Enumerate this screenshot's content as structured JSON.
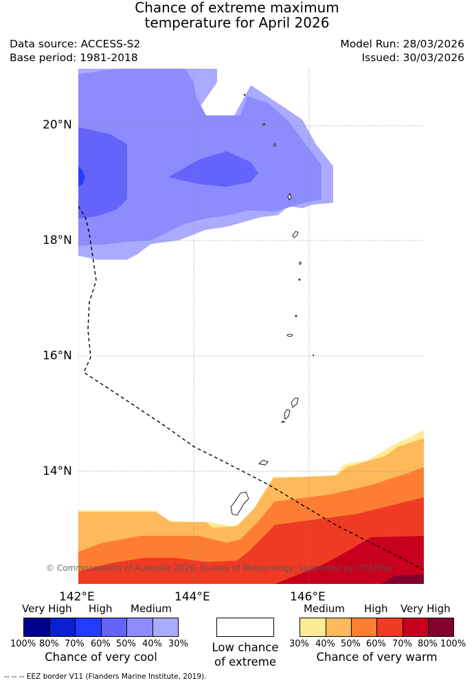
{
  "title": {
    "line1": "Chance of extreme maximum",
    "line2": "temperature for April 2026"
  },
  "meta": {
    "data_source": "Data source: ACCESS-S2",
    "base_period": "Base period: 1981-2018",
    "model_run": "Model Run: 28/03/2026",
    "issued": "Issued: 30/03/2026"
  },
  "map": {
    "lat_labels": [
      "20°N",
      "18°N",
      "16°N",
      "14°N"
    ],
    "lon_labels": [
      "142°E",
      "144°E",
      "146°E"
    ],
    "copyright": "© Commonwealth of Australia 2026, Bureau of Meteorology, supported by COSPPac"
  },
  "legend": {
    "cool": {
      "words": [
        "Very High",
        "High",
        "Medium"
      ],
      "percents": [
        "100%",
        "80%",
        "70%",
        "60%",
        "50%",
        "40%",
        "30%"
      ],
      "title": "Chance of very cool",
      "colors": [
        "#00008f",
        "#0a1ed2",
        "#233cff",
        "#6464fa",
        "#8c8cff",
        "#aaaaff"
      ]
    },
    "low": {
      "line1": "Low chance",
      "line2": "of extreme",
      "color": "#ffffff"
    },
    "warm": {
      "words": [
        "Medium",
        "High",
        "Very High"
      ],
      "percents": [
        "30%",
        "40%",
        "50%",
        "60%",
        "70%",
        "80%",
        "100%"
      ],
      "title": "Chance of very warm",
      "colors": [
        "#ffeb96",
        "#fdb95a",
        "#fd7e32",
        "#ef3b24",
        "#c8001e",
        "#82002a"
      ]
    }
  },
  "footer": {
    "eez_symbol": "--  --  --",
    "eez_text": "EEZ border V11 (Flanders Marine Institute, 2019)."
  }
}
